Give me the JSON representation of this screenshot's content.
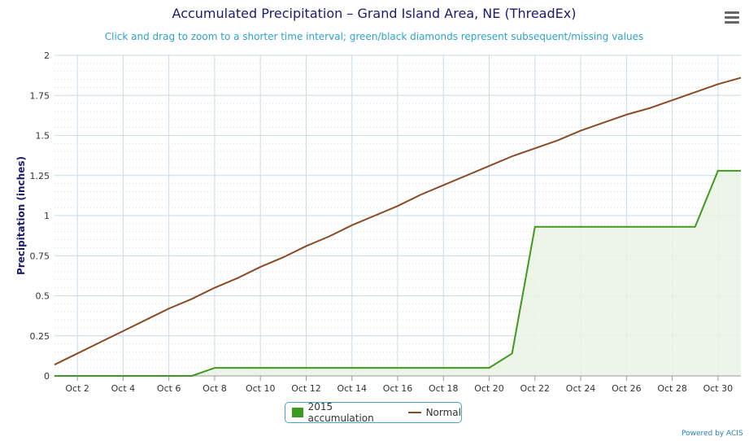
{
  "title": "Accumulated Precipitation – Grand Island Area, NE (ThreadEx)",
  "subtitle": "Click and drag to zoom to a shorter time interval; green/black diamonds represent subsequent/missing values",
  "menu_icon": "hamburger-menu-icon",
  "credits": "Powered by ACIS",
  "colors": {
    "accumulation_line": "#3e9a1e",
    "accumulation_fill": "#eaf3e4",
    "normal_line": "#8b4a23",
    "title": "#1a1a70",
    "subtitle": "#2ea2c9",
    "grid": "#c6dcea",
    "minor_grid": "#dcdcdc"
  },
  "chart_data": {
    "type": "area",
    "title": "Accumulated Precipitation – Grand Island Area, NE (ThreadEx)",
    "subtitle": "Click and drag to zoom to a shorter time interval; green/black diamonds represent subsequent/missing values",
    "ylabel": "Precipitation (inches)",
    "xlabel": "",
    "ylim": [
      0,
      2
    ],
    "y_ticks": [
      "0",
      "0.25",
      "0.5",
      "0.75",
      "1",
      "1.25",
      "1.5",
      "1.75",
      "2"
    ],
    "x_ticks": [
      "Oct 2",
      "Oct 4",
      "Oct 6",
      "Oct 8",
      "Oct 10",
      "Oct 12",
      "Oct 14",
      "Oct 16",
      "Oct 18",
      "Oct 20",
      "Oct 22",
      "Oct 24",
      "Oct 26",
      "Oct 28",
      "Oct 30"
    ],
    "grid": true,
    "legend_position": "bottom",
    "x": [
      "Oct 1",
      "Oct 2",
      "Oct 3",
      "Oct 4",
      "Oct 5",
      "Oct 6",
      "Oct 7",
      "Oct 8",
      "Oct 9",
      "Oct 10",
      "Oct 11",
      "Oct 12",
      "Oct 13",
      "Oct 14",
      "Oct 15",
      "Oct 16",
      "Oct 17",
      "Oct 18",
      "Oct 19",
      "Oct 20",
      "Oct 21",
      "Oct 22",
      "Oct 23",
      "Oct 24",
      "Oct 25",
      "Oct 26",
      "Oct 27",
      "Oct 28",
      "Oct 29",
      "Oct 30",
      "Oct 31"
    ],
    "series": [
      {
        "name": "2015 accumulation",
        "type": "area",
        "values": [
          0,
          0,
          0,
          0,
          0,
          0,
          0,
          0.05,
          0.05,
          0.05,
          0.05,
          0.05,
          0.05,
          0.05,
          0.05,
          0.05,
          0.05,
          0.05,
          0.05,
          0.05,
          0.14,
          0.93,
          0.93,
          0.93,
          0.93,
          0.93,
          0.93,
          0.93,
          0.93,
          1.28,
          1.28
        ]
      },
      {
        "name": "Normal",
        "type": "line",
        "values": [
          0.07,
          0.14,
          0.21,
          0.28,
          0.35,
          0.42,
          0.48,
          0.55,
          0.61,
          0.68,
          0.74,
          0.81,
          0.87,
          0.94,
          1.0,
          1.06,
          1.13,
          1.19,
          1.25,
          1.31,
          1.37,
          1.42,
          1.47,
          1.53,
          1.58,
          1.63,
          1.67,
          1.72,
          1.77,
          1.82,
          1.86
        ]
      }
    ]
  }
}
